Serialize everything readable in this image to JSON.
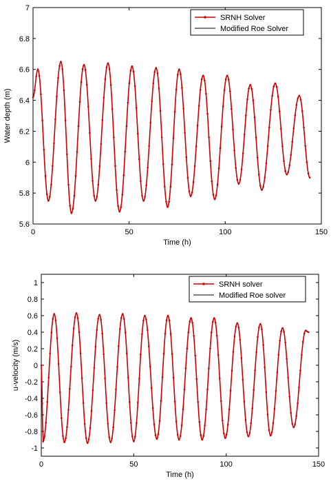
{
  "chart_data": [
    {
      "type": "line",
      "xlabel": "Time (h)",
      "ylabel": "Water depth (m)",
      "xlim": [
        0,
        150
      ],
      "ylim": [
        5.6,
        7.0
      ],
      "xticks": [
        "0",
        "50",
        "100",
        "150"
      ],
      "yticks": [
        "5.6",
        "5.8",
        "6",
        "6.2",
        "6.4",
        "6.6",
        "6.8",
        "7"
      ],
      "legend_position": "top-right",
      "grid": false,
      "series": [
        {
          "name": "SRNH Solver",
          "color": "#cc0000",
          "marker": "dot",
          "extrema": [
            [
              0,
              6.42
            ],
            [
              2.5,
              6.6
            ],
            [
              8,
              5.75
            ],
            [
              14.5,
              6.65
            ],
            [
              20,
              5.67
            ],
            [
              26.5,
              6.63
            ],
            [
              32.5,
              5.75
            ],
            [
              39,
              6.64
            ],
            [
              45,
              5.68
            ],
            [
              51.5,
              6.62
            ],
            [
              57.5,
              5.75
            ],
            [
              64,
              6.61
            ],
            [
              70,
              5.71
            ],
            [
              76,
              6.6
            ],
            [
              82,
              5.78
            ],
            [
              88.5,
              6.56
            ],
            [
              94.5,
              5.76
            ],
            [
              101,
              6.56
            ],
            [
              107,
              5.86
            ],
            [
              113,
              6.5
            ],
            [
              119,
              5.82
            ],
            [
              126,
              6.51
            ],
            [
              132,
              5.92
            ],
            [
              138.5,
              6.43
            ],
            [
              144,
              5.9
            ]
          ]
        },
        {
          "name": "Modified Roe Solver",
          "color": "#000000",
          "marker": "none",
          "extrema": "same as SRNH Solver"
        }
      ]
    },
    {
      "type": "line",
      "xlabel": "Time (h)",
      "ylabel": "u-velocity (m/s)",
      "xlim": [
        0,
        150
      ],
      "ylim": [
        -1.1,
        1.1
      ],
      "xticks": [
        "0",
        "50",
        "100",
        "150"
      ],
      "yticks": [
        "-1",
        "-0.8",
        "-0.6",
        "-0.4",
        "-0.2",
        "0",
        "0.2",
        "0.4",
        "0.6",
        "0.8",
        "1"
      ],
      "legend_position": "top-right",
      "grid": false,
      "series": [
        {
          "name": "SRNH solver",
          "color": "#cc0000",
          "marker": "dot",
          "extrema": [
            [
              0,
              0.0
            ],
            [
              1,
              -0.92
            ],
            [
              7,
              0.62
            ],
            [
              12.5,
              -0.93
            ],
            [
              19,
              0.63
            ],
            [
              25,
              -0.94
            ],
            [
              31.5,
              0.61
            ],
            [
              37.5,
              -0.93
            ],
            [
              44,
              0.62
            ],
            [
              50,
              -0.92
            ],
            [
              56,
              0.6
            ],
            [
              62.5,
              -0.89
            ],
            [
              68.5,
              0.6
            ],
            [
              74.5,
              -0.9
            ],
            [
              81,
              0.57
            ],
            [
              87,
              -0.9
            ],
            [
              93.5,
              0.57
            ],
            [
              99.5,
              -0.88
            ],
            [
              106,
              0.51
            ],
            [
              112,
              -0.86
            ],
            [
              118.5,
              0.5
            ],
            [
              124,
              -0.85
            ],
            [
              130.5,
              0.45
            ],
            [
              136.5,
              -0.75
            ],
            [
              143,
              0.42
            ],
            [
              144.5,
              0.4
            ]
          ]
        },
        {
          "name": "Modified Roe solver",
          "color": "#000000",
          "marker": "none",
          "extrema": "same as SRNH solver"
        }
      ]
    }
  ]
}
